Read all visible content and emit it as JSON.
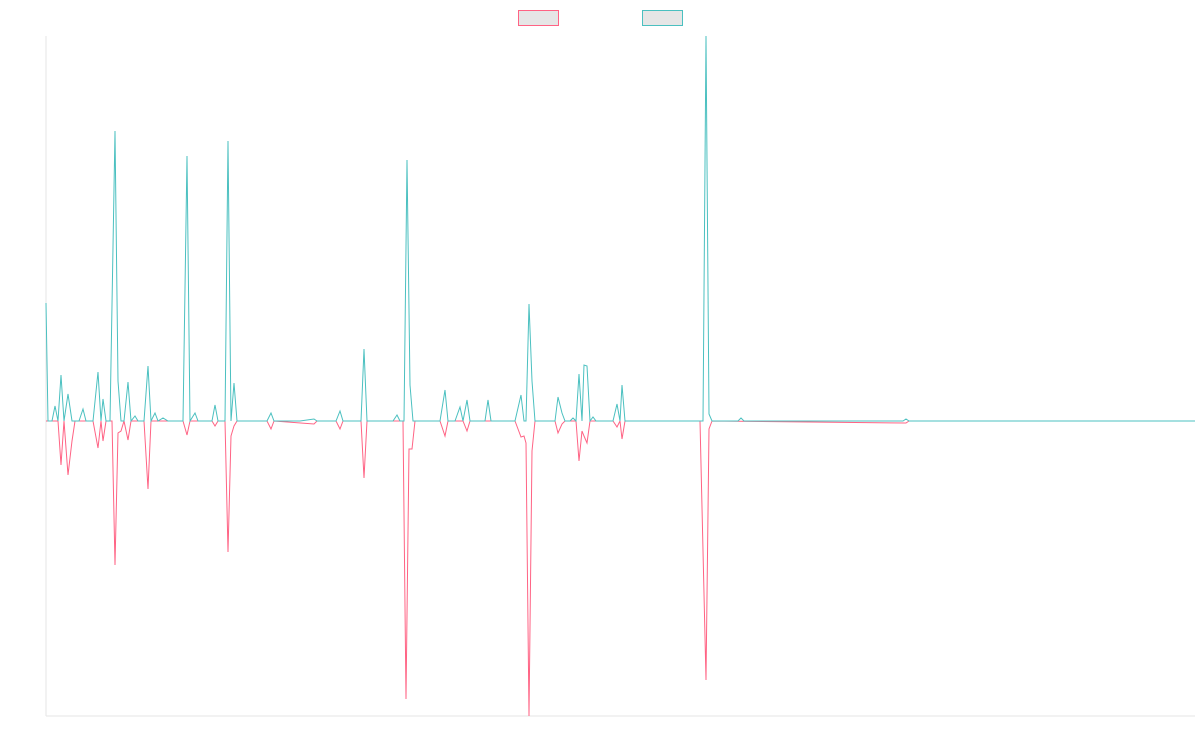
{
  "chart_data": {
    "type": "line",
    "xlim": [
      46,
      1195
    ],
    "ylim": [
      -295,
      385
    ],
    "grid": false,
    "legend": "top",
    "series": [
      {
        "color": "#ff6384",
        "x": [
          46,
          58,
          61,
          64,
          68,
          72,
          75,
          93,
          98,
          101,
          103,
          106,
          112,
          115,
          118,
          121,
          124,
          128,
          131,
          144,
          148,
          151,
          183,
          187,
          190,
          212,
          215,
          218,
          225,
          228,
          231,
          234,
          237,
          267,
          271,
          274,
          314,
          317,
          336,
          340,
          343,
          361,
          364,
          367,
          400,
          403,
          406,
          409,
          412,
          415,
          440,
          445,
          448,
          463,
          467,
          470,
          515,
          518,
          521,
          524,
          526,
          529,
          532,
          535,
          555,
          558,
          562,
          565,
          576,
          579,
          582,
          584,
          587,
          590,
          613,
          617,
          620,
          622,
          625,
          700,
          706,
          709,
          712,
          906,
          909,
          1195
        ],
        "values": [
          0,
          0,
          -44,
          0,
          -54,
          -20,
          0,
          0,
          -27,
          0,
          -20,
          0,
          0,
          -144,
          -12,
          -10,
          0,
          -19,
          0,
          0,
          -68,
          0,
          0,
          -14,
          0,
          0,
          -5,
          0,
          0,
          -131,
          -15,
          -5,
          0,
          0,
          -8,
          0,
          -3,
          0,
          0,
          -8,
          0,
          0,
          -57,
          0,
          0,
          0,
          -278,
          -28,
          -28,
          0,
          0,
          -15,
          0,
          0,
          -10,
          0,
          0,
          -8,
          -16,
          -15,
          -22,
          -295,
          -30,
          0,
          0,
          -12,
          -3,
          0,
          0,
          -40,
          -10,
          -15,
          -22,
          0,
          0,
          -6,
          0,
          -18,
          0,
          0,
          -259,
          -8,
          0,
          -2,
          0,
          0
        ]
      },
      {
        "color": "#4bc0c0",
        "x": [
          46,
          48,
          52,
          55,
          58,
          61,
          64,
          68,
          72,
          79,
          83,
          86,
          93,
          98,
          101,
          103,
          106,
          110,
          115,
          118,
          121,
          124,
          128,
          131,
          135,
          138,
          144,
          148,
          151,
          155,
          158,
          163,
          168,
          176,
          183,
          187,
          190,
          195,
          198,
          207,
          212,
          215,
          218,
          225,
          228,
          231,
          234,
          237,
          245,
          267,
          271,
          274,
          300,
          314,
          317,
          336,
          340,
          343,
          361,
          364,
          367,
          393,
          397,
          400,
          404,
          407,
          410,
          413,
          440,
          445,
          448,
          455,
          460,
          463,
          467,
          470,
          485,
          488,
          491,
          515,
          521,
          524,
          526,
          529,
          532,
          535,
          555,
          558,
          562,
          565,
          570,
          573,
          576,
          579,
          582,
          584,
          587,
          590,
          593,
          596,
          613,
          617,
          620,
          622,
          625,
          650,
          700,
          703,
          706,
          709,
          712,
          716,
          738,
          741,
          744,
          903,
          906,
          909,
          1195
        ],
        "values": [
          118,
          0,
          0,
          15,
          0,
          46,
          0,
          27,
          0,
          0,
          12,
          0,
          0,
          49,
          0,
          22,
          0,
          0,
          290,
          40,
          0,
          0,
          39,
          0,
          5,
          0,
          0,
          55,
          0,
          8,
          0,
          3,
          0,
          0,
          0,
          265,
          0,
          8,
          0,
          0,
          0,
          16,
          0,
          0,
          280,
          0,
          38,
          0,
          0,
          0,
          8,
          0,
          0,
          2,
          0,
          0,
          10,
          0,
          0,
          72,
          0,
          0,
          6,
          0,
          0,
          261,
          36,
          0,
          0,
          31,
          0,
          0,
          14,
          0,
          21,
          0,
          0,
          21,
          0,
          0,
          26,
          0,
          0,
          117,
          40,
          0,
          0,
          24,
          8,
          0,
          0,
          3,
          0,
          47,
          0,
          56,
          55,
          0,
          4,
          0,
          0,
          17,
          0,
          36,
          0,
          0,
          0,
          0,
          385,
          7,
          0,
          0,
          0,
          3,
          0,
          0,
          2,
          0,
          0
        ]
      }
    ]
  }
}
